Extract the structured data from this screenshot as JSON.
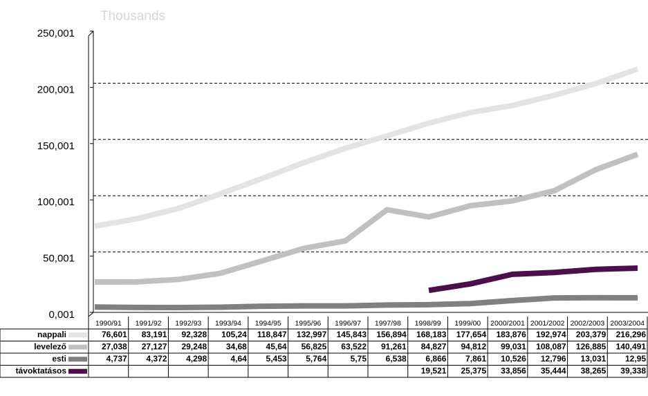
{
  "chart_data": {
    "type": "line",
    "title": "Thousands",
    "categories": [
      "1990/91",
      "1991/92",
      "1992/93",
      "1993/94",
      "1994/95",
      "1995/96",
      "1996/97",
      "1997/98",
      "1998/99",
      "1999/00",
      "2000/2001",
      "2001/2002",
      "2002/2003",
      "2003/2004"
    ],
    "ylim": [
      0.001,
      250.001
    ],
    "yticks": [
      {
        "value": 0.001,
        "label": "0,001"
      },
      {
        "value": 50.001,
        "label": "50,001"
      },
      {
        "value": 100.001,
        "label": "100,001"
      },
      {
        "value": 150.001,
        "label": "150,001"
      },
      {
        "value": 200.001,
        "label": "200,001"
      },
      {
        "value": 250.001,
        "label": "250,001"
      }
    ],
    "grid": true,
    "series": [
      {
        "name": "nappali",
        "color": "#e3e3e3",
        "values": [
          76.601,
          83.191,
          92.328,
          105.24,
          118.847,
          132.997,
          145.843,
          156.894,
          168.183,
          177.654,
          183.876,
          192.974,
          203.379,
          216.296
        ],
        "value_labels": [
          "76,601",
          "83,191",
          "92,328",
          "105,24",
          "118,847",
          "132,997",
          "145,843",
          "156,894",
          "168,183",
          "177,654",
          "183,876",
          "192,974",
          "203,379",
          "216,296"
        ]
      },
      {
        "name": "levelező",
        "color": "#c0c0c0",
        "values": [
          27.038,
          27.127,
          29.248,
          34.68,
          45.64,
          56.825,
          63.522,
          91.261,
          84.827,
          94.812,
          99.031,
          108.087,
          126.885,
          140.491
        ],
        "value_labels": [
          "27,038",
          "27,127",
          "29,248",
          "34,68",
          "45,64",
          "56,825",
          "63,522",
          "91,261",
          "84,827",
          "94,812",
          "99,031",
          "108,087",
          "126,885",
          "140,491"
        ]
      },
      {
        "name": "esti",
        "color": "#808080",
        "values": [
          4.737,
          4.372,
          4.298,
          4.64,
          5.453,
          5.764,
          5.75,
          6.538,
          6.866,
          7.861,
          10.526,
          12.796,
          13.031,
          12.95
        ],
        "value_labels": [
          "4,737",
          "4,372",
          "4,298",
          "4,64",
          "5,453",
          "5,764",
          "5,75",
          "6,538",
          "6,866",
          "7,861",
          "10,526",
          "12,796",
          "13,031",
          "12,95"
        ]
      },
      {
        "name": "távoktatásos",
        "color": "#4b0f4b",
        "values": [
          null,
          null,
          null,
          null,
          null,
          null,
          null,
          null,
          19.521,
          25.375,
          33.856,
          35.444,
          38.265,
          39.338
        ],
        "value_labels": [
          null,
          null,
          null,
          null,
          null,
          null,
          null,
          null,
          "19,521",
          "25,375",
          "33,856",
          "35,444",
          "38,265",
          "39,338"
        ]
      }
    ]
  }
}
